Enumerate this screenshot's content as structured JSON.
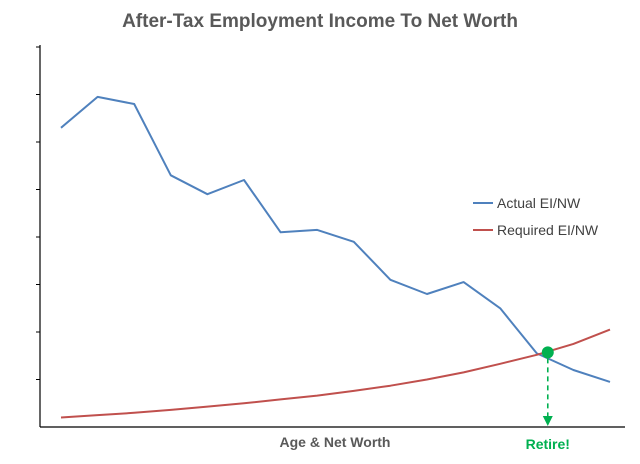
{
  "chart_data": {
    "type": "line",
    "title": "After-Tax Employment Income To Net Worth",
    "xlabel": "Age & Net Worth",
    "ylabel": "",
    "ylim": [
      0,
      8
    ],
    "x": [
      1,
      2,
      3,
      4,
      5,
      6,
      7,
      8,
      9,
      10,
      11,
      12,
      13,
      14,
      15,
      16
    ],
    "series": [
      {
        "name": "Actual EI/NW",
        "color": "#4f81bd",
        "values": [
          6.3,
          6.95,
          6.8,
          5.3,
          4.9,
          5.2,
          4.1,
          4.15,
          3.9,
          3.1,
          2.8,
          3.05,
          2.5,
          1.55,
          1.2,
          0.95
        ]
      },
      {
        "name": "Required EI/NW",
        "color": "#c0504d",
        "values": [
          0.2,
          0.25,
          0.3,
          0.36,
          0.43,
          0.5,
          0.58,
          0.66,
          0.76,
          0.87,
          1.0,
          1.15,
          1.33,
          1.52,
          1.75,
          2.05
        ]
      }
    ],
    "legend": {
      "position": "right"
    },
    "grid": false,
    "annotations": {
      "intersection": {
        "x": 14.3,
        "y": 1.57,
        "color": "#00b050"
      },
      "retire_label": "Retire!"
    }
  }
}
